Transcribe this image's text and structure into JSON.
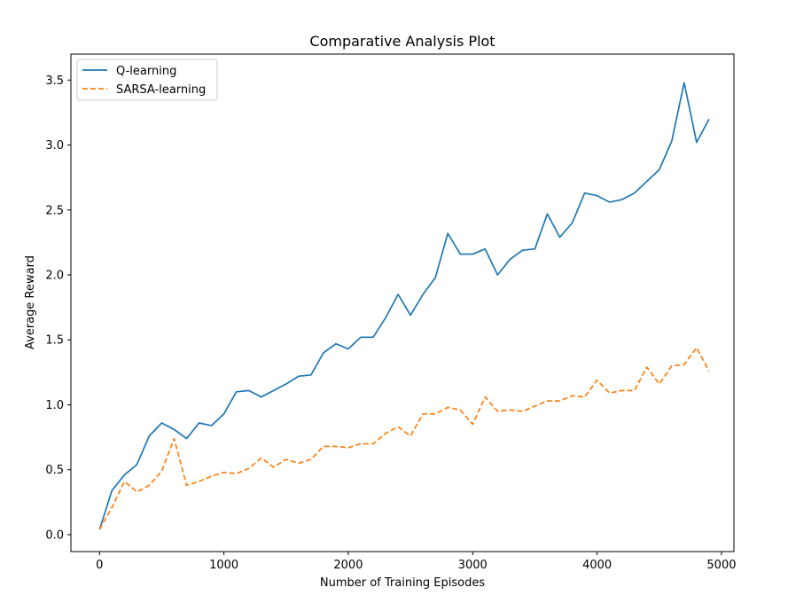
{
  "chart_data": {
    "type": "line",
    "title": "Comparative Analysis Plot",
    "xlabel": "Number of Training Episodes",
    "ylabel": "Average Reward",
    "xlim": [
      -230,
      5100
    ],
    "ylim": [
      -0.13,
      3.7
    ],
    "xticks": [
      0,
      1000,
      2000,
      3000,
      4000,
      5000
    ],
    "yticks": [
      0.0,
      0.5,
      1.0,
      1.5,
      2.0,
      2.5,
      3.0,
      3.5
    ],
    "xtick_labels": [
      "0",
      "1000",
      "2000",
      "3000",
      "4000",
      "5000"
    ],
    "ytick_labels": [
      "0.0",
      "0.5",
      "1.0",
      "1.5",
      "2.0",
      "2.5",
      "3.0",
      "3.5"
    ],
    "grid": false,
    "legend_position": "upper-left",
    "x": [
      0,
      100,
      200,
      300,
      400,
      500,
      600,
      700,
      800,
      900,
      1000,
      1100,
      1200,
      1300,
      1400,
      1500,
      1600,
      1700,
      1800,
      1900,
      2000,
      2100,
      2200,
      2300,
      2400,
      2500,
      2600,
      2700,
      2800,
      2900,
      3000,
      3100,
      3200,
      3300,
      3400,
      3500,
      3600,
      3700,
      3800,
      3900,
      4000,
      4100,
      4200,
      4300,
      4400,
      4500,
      4600,
      4700,
      4800,
      4900
    ],
    "series": [
      {
        "name": "Q-learning",
        "color": "#1f77b4",
        "style": "solid",
        "values": [
          0.04,
          0.34,
          0.46,
          0.54,
          0.76,
          0.86,
          0.81,
          0.74,
          0.86,
          0.84,
          0.93,
          1.1,
          1.11,
          1.06,
          1.11,
          1.16,
          1.22,
          1.23,
          1.4,
          1.47,
          1.43,
          1.52,
          1.52,
          1.67,
          1.85,
          1.69,
          1.85,
          1.98,
          2.32,
          2.16,
          2.16,
          2.2,
          2.0,
          2.12,
          2.19,
          2.2,
          2.47,
          2.29,
          2.4,
          2.63,
          2.61,
          2.56,
          2.58,
          2.63,
          2.72,
          2.81,
          3.03,
          3.48,
          3.02,
          3.2
        ]
      },
      {
        "name": "SARSA-learning",
        "color": "#ff7f0e",
        "style": "dashed",
        "values": [
          0.04,
          0.21,
          0.41,
          0.33,
          0.38,
          0.49,
          0.74,
          0.38,
          0.41,
          0.45,
          0.48,
          0.47,
          0.51,
          0.59,
          0.52,
          0.58,
          0.55,
          0.58,
          0.68,
          0.68,
          0.67,
          0.7,
          0.7,
          0.78,
          0.83,
          0.76,
          0.93,
          0.93,
          0.98,
          0.96,
          0.85,
          1.06,
          0.95,
          0.96,
          0.95,
          0.99,
          1.03,
          1.03,
          1.07,
          1.06,
          1.19,
          1.09,
          1.11,
          1.11,
          1.29,
          1.16,
          1.3,
          1.31,
          1.44,
          1.26
        ]
      }
    ]
  }
}
